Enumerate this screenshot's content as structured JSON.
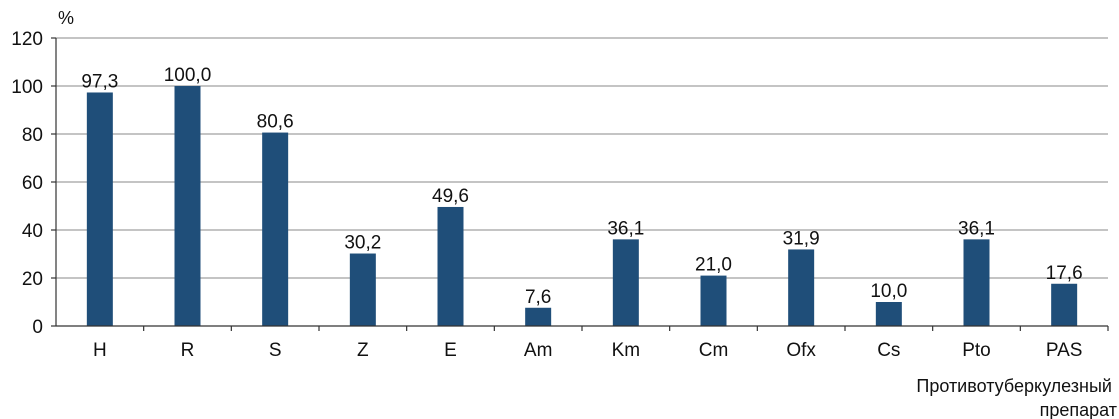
{
  "chart_data": {
    "type": "bar",
    "ylabel": "%",
    "xlabel_lines": [
      "Противотуберкулезный",
      "препарат"
    ],
    "ylim": [
      0,
      120
    ],
    "yticks": [
      0,
      20,
      40,
      60,
      80,
      100,
      120
    ],
    "grid": true,
    "categories": [
      "H",
      "R",
      "S",
      "Z",
      "E",
      "Am",
      "Km",
      "Cm",
      "Ofx",
      "Cs",
      "Pto",
      "PAS"
    ],
    "values": [
      97.3,
      100.0,
      80.6,
      30.2,
      49.6,
      7.6,
      36.1,
      21.0,
      31.9,
      10.0,
      36.1,
      17.6
    ],
    "value_labels": [
      "97,3",
      "100,0",
      "80,6",
      "30,2",
      "49,6",
      "7,6",
      "36,1",
      "21,0",
      "31,9",
      "10,0",
      "36,1",
      "17,6"
    ],
    "bar_color": "#1f4e79",
    "grid_color": "#8a8a8a"
  }
}
